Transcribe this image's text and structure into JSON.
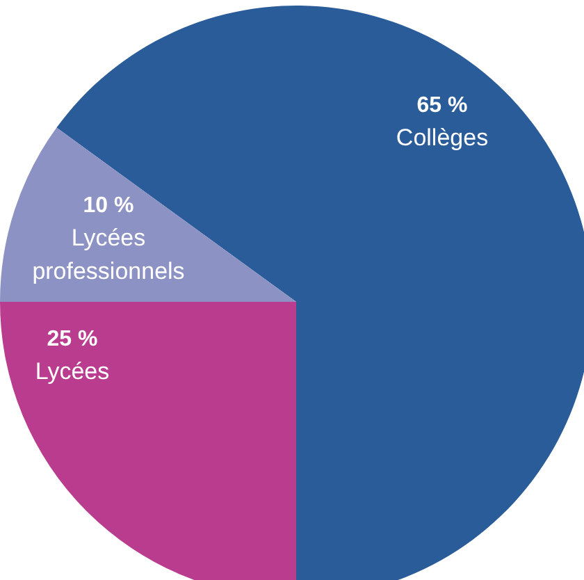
{
  "chart_data": {
    "type": "pie",
    "categories": [
      "Collèges",
      "Lycées",
      "Lycées professionnels"
    ],
    "values": [
      65,
      25,
      10
    ],
    "colors": [
      "#2a5c99",
      "#b93c8f",
      "#8c93c4"
    ],
    "value_labels": [
      "65 %",
      "25 %",
      "10 %"
    ]
  }
}
